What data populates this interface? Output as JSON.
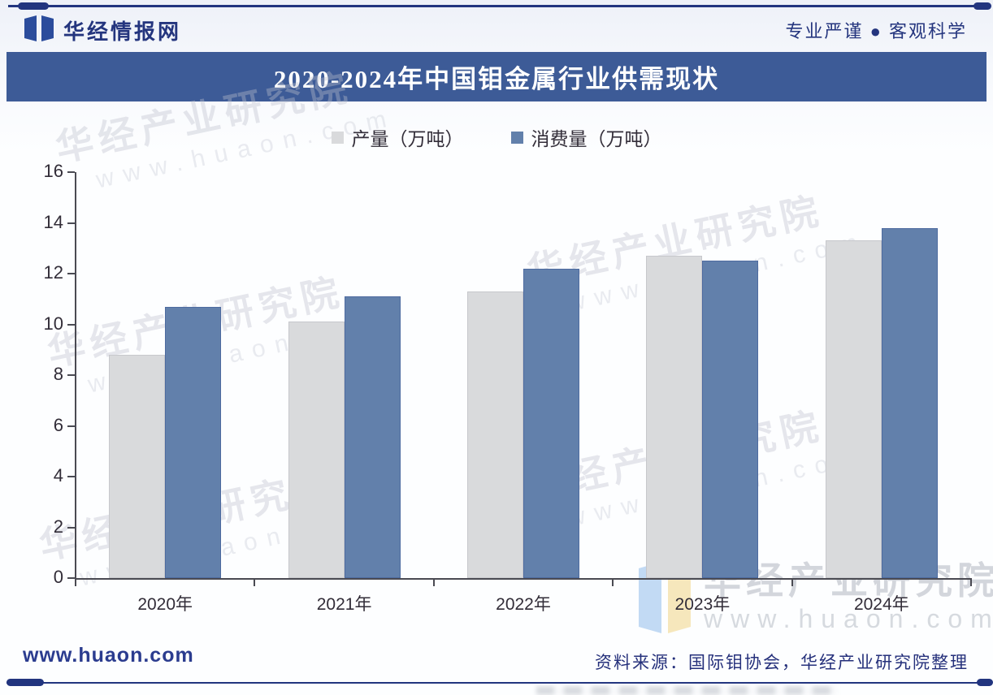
{
  "header": {
    "brand": "华经情报网",
    "tagline": "专业严谨 ● 客观科学"
  },
  "title_bar": {
    "title": "2020-2024年中国钼金属行业供需现状"
  },
  "chart_data": {
    "type": "bar",
    "title": "2020-2024年中国钼金属行业供需现状",
    "categories": [
      "2020年",
      "2021年",
      "2022年",
      "2023年",
      "2024年"
    ],
    "series": [
      {
        "name": "产量（万吨）",
        "values": [
          8.8,
          10.1,
          11.3,
          12.7,
          13.3
        ],
        "color": "#d9dadc",
        "border_color": "#c7c8cc"
      },
      {
        "name": "消费量（万吨）",
        "values": [
          10.7,
          11.1,
          12.2,
          12.5,
          13.8
        ],
        "color": "#6280ab",
        "border_color": "#4e6ba0"
      }
    ],
    "xlabel": "",
    "ylabel": "",
    "ylim": [
      0,
      16
    ],
    "ytick_step": 2,
    "grid": false,
    "legend_position": "top-center"
  },
  "watermarks": {
    "diagonal_text": "华经产业研究院",
    "diagonal_url": "www.huaon.com",
    "corner_text": "华经产业研究院",
    "corner_url": "www.huaon.com"
  },
  "footer": {
    "site": "www.huaon.com",
    "source": "资料来源：国际钼协会，华经产业研究院整理"
  },
  "colors": {
    "accent_navy": "#24357e",
    "title_bar_bg": "#3d5b97",
    "axis": "#4a4a52",
    "production_bar": "#d9dadc",
    "consumption_bar": "#6280ab"
  }
}
